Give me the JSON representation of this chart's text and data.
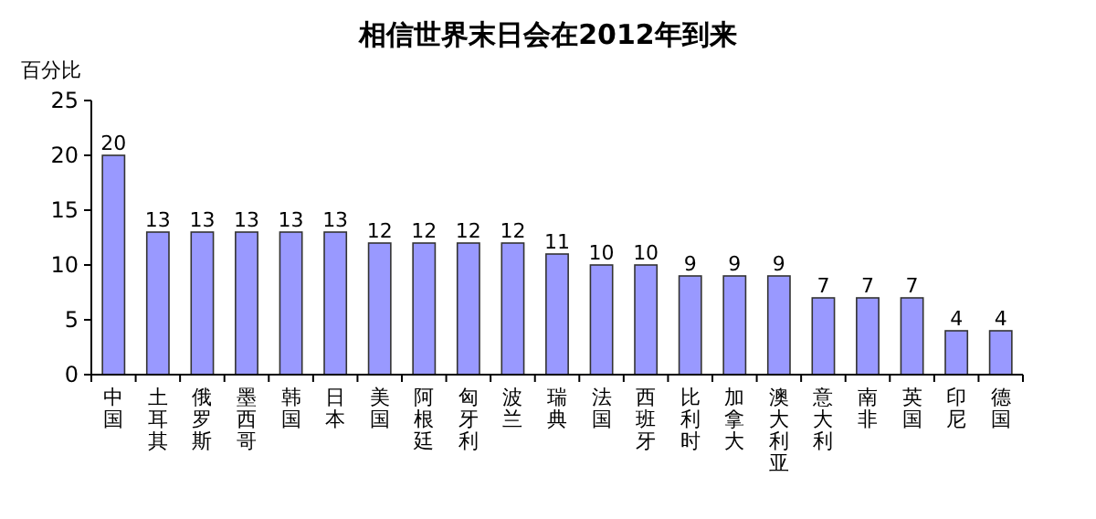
{
  "chart_data": {
    "type": "bar",
    "title": "相信世界末日会在2012年到来",
    "ylabel": "百分比",
    "categories": [
      "中国",
      "土耳其",
      "俄罗斯",
      "墨西哥",
      "韩国",
      "日本",
      "美国",
      "阿根廷",
      "匈牙利",
      "波兰",
      "瑞典",
      "法国",
      "西班牙",
      "比利时",
      "加拿大",
      "澳大利亚",
      "意大利",
      "南非",
      "英国",
      "印尼",
      "德国"
    ],
    "values": [
      20,
      13,
      13,
      13,
      13,
      13,
      12,
      12,
      12,
      12,
      11,
      10,
      10,
      9,
      9,
      9,
      7,
      7,
      7,
      4,
      4
    ],
    "color": "#9999ff",
    "ylim": [
      0,
      25
    ],
    "yticks": [
      0,
      5,
      10,
      15,
      20,
      25
    ],
    "data_labels": true
  }
}
